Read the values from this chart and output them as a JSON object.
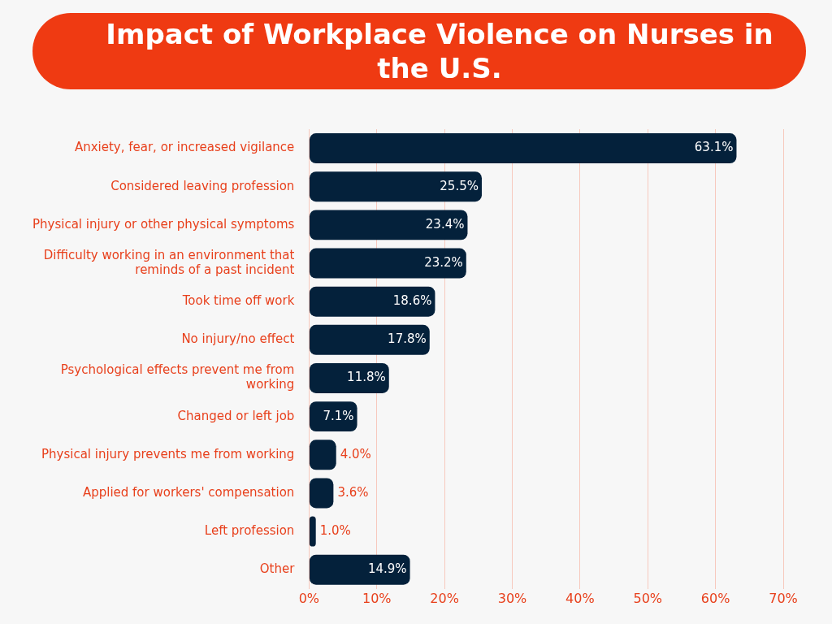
{
  "chart_data": {
    "type": "bar",
    "orientation": "horizontal",
    "title": "Impact of Workplace Violence on Nurses in the U.S.",
    "categories": [
      "Anxiety, fear, or increased vigilance",
      "Considered leaving profession",
      "Physical injury or other physical symptoms",
      "Difficulty working in an environment that reminds of a past incident",
      "Took time off work",
      "No injury/no effect",
      "Psychological effects prevent me from working",
      "Changed or left job",
      "Physical injury prevents me from working",
      "Applied for workers' compensation",
      "Left profession",
      "Other"
    ],
    "values": [
      63.1,
      25.5,
      23.4,
      23.2,
      18.6,
      17.8,
      11.8,
      7.1,
      4.0,
      3.6,
      1.0,
      14.9
    ],
    "value_labels": [
      "63.1%",
      "25.5%",
      "23.4%",
      "23.2%",
      "18.6%",
      "17.8%",
      "11.8%",
      "7.1%",
      "4.0%",
      "3.6%",
      "1.0%",
      "14.9%"
    ],
    "color": "#04213b",
    "xlim": [
      0,
      70
    ],
    "xticks": [
      {
        "value": 0,
        "label": "0%"
      },
      {
        "value": 10,
        "label": "10%"
      },
      {
        "value": 20,
        "label": "20%"
      },
      {
        "value": 30,
        "label": "30%"
      },
      {
        "value": 40,
        "label": "40%"
      },
      {
        "value": 50,
        "label": "50%"
      },
      {
        "value": 60,
        "label": "60%"
      },
      {
        "value": 70,
        "label": "70%"
      }
    ],
    "grid": "x",
    "legend": false
  }
}
